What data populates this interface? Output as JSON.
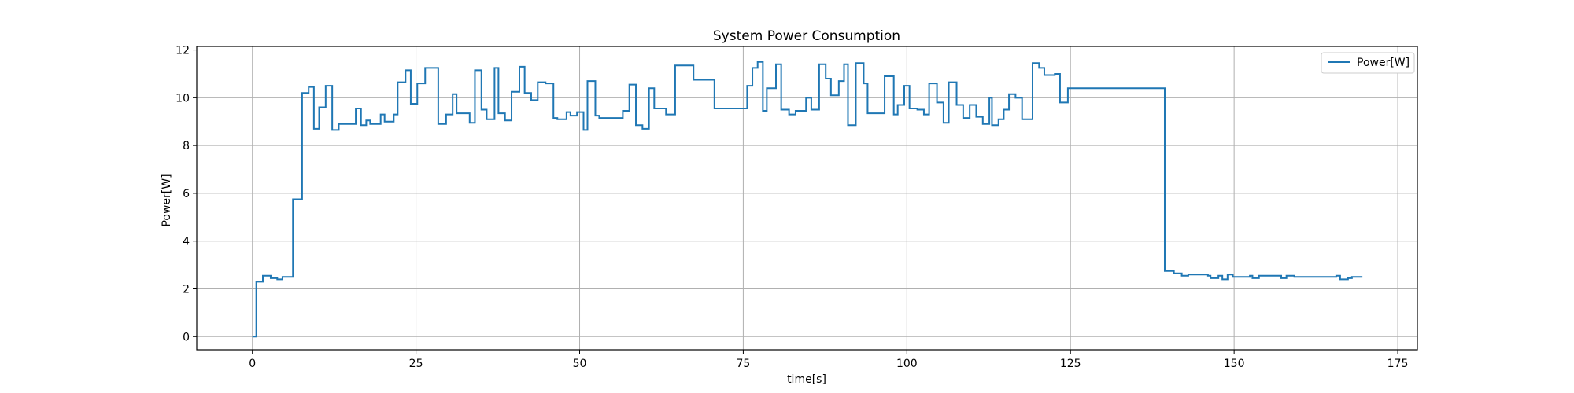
{
  "chart_data": {
    "type": "line",
    "title": "System Power Consumption",
    "xlabel": "time[s]",
    "ylabel": "Power[W]",
    "xlim": [
      -8.5,
      178.0
    ],
    "ylim": [
      -0.55,
      12.15
    ],
    "xticks": [
      0,
      25,
      50,
      75,
      100,
      125,
      150,
      175
    ],
    "yticks": [
      0,
      2,
      4,
      6,
      8,
      10,
      12
    ],
    "grid": true,
    "legend_position": "upper-right",
    "colors": {
      "line": "#1f77b4",
      "grid": "#b0b0b0"
    },
    "series": [
      {
        "name": "Power[W]",
        "step": "post",
        "points": [
          [
            0,
            0.0
          ],
          [
            0.6,
            2.3
          ],
          [
            1.6,
            2.55
          ],
          [
            2.8,
            2.45
          ],
          [
            3.8,
            2.4
          ],
          [
            4.6,
            2.5
          ],
          [
            6.2,
            5.75
          ],
          [
            7.6,
            10.2
          ],
          [
            8.6,
            10.45
          ],
          [
            9.4,
            8.7
          ],
          [
            10.2,
            9.6
          ],
          [
            11.2,
            10.5
          ],
          [
            12.2,
            8.65
          ],
          [
            13.2,
            8.9
          ],
          [
            15.8,
            9.55
          ],
          [
            16.6,
            8.85
          ],
          [
            17.4,
            9.05
          ],
          [
            18.0,
            8.9
          ],
          [
            19.6,
            9.3
          ],
          [
            20.2,
            9.0
          ],
          [
            21.6,
            9.3
          ],
          [
            22.2,
            10.65
          ],
          [
            23.4,
            11.15
          ],
          [
            24.2,
            9.75
          ],
          [
            25.2,
            10.6
          ],
          [
            26.4,
            11.25
          ],
          [
            28.4,
            8.9
          ],
          [
            29.6,
            9.3
          ],
          [
            30.6,
            10.15
          ],
          [
            31.2,
            9.35
          ],
          [
            33.2,
            8.95
          ],
          [
            34.0,
            11.15
          ],
          [
            35.0,
            9.5
          ],
          [
            35.8,
            9.1
          ],
          [
            37.0,
            11.25
          ],
          [
            37.6,
            9.35
          ],
          [
            38.6,
            9.05
          ],
          [
            39.6,
            10.25
          ],
          [
            40.8,
            11.3
          ],
          [
            41.6,
            10.2
          ],
          [
            42.6,
            9.9
          ],
          [
            43.6,
            10.65
          ],
          [
            44.8,
            10.6
          ],
          [
            46.0,
            9.15
          ],
          [
            46.6,
            9.1
          ],
          [
            48.0,
            9.4
          ],
          [
            48.6,
            9.25
          ],
          [
            49.6,
            9.4
          ],
          [
            50.6,
            8.65
          ],
          [
            51.2,
            10.7
          ],
          [
            52.4,
            9.25
          ],
          [
            53.0,
            9.15
          ],
          [
            56.6,
            9.45
          ],
          [
            57.6,
            10.55
          ],
          [
            58.6,
            8.85
          ],
          [
            59.6,
            8.7
          ],
          [
            60.6,
            10.4
          ],
          [
            61.4,
            9.55
          ],
          [
            63.2,
            9.3
          ],
          [
            64.6,
            11.35
          ],
          [
            66.2,
            11.35
          ],
          [
            67.4,
            10.75
          ],
          [
            70.2,
            10.75
          ],
          [
            70.6,
            9.55
          ],
          [
            75.0,
            9.55
          ],
          [
            75.6,
            10.5
          ],
          [
            76.4,
            11.25
          ],
          [
            77.2,
            11.5
          ],
          [
            78.0,
            9.45
          ],
          [
            78.6,
            10.4
          ],
          [
            80.0,
            11.4
          ],
          [
            80.8,
            9.5
          ],
          [
            82.0,
            9.3
          ],
          [
            83.0,
            9.45
          ],
          [
            84.6,
            10.0
          ],
          [
            85.4,
            9.5
          ],
          [
            86.6,
            11.4
          ],
          [
            87.6,
            10.8
          ],
          [
            88.4,
            10.1
          ],
          [
            89.6,
            10.7
          ],
          [
            90.4,
            11.4
          ],
          [
            91.0,
            8.85
          ],
          [
            92.2,
            11.45
          ],
          [
            93.4,
            10.6
          ],
          [
            94.0,
            9.35
          ],
          [
            96.6,
            10.9
          ],
          [
            98.0,
            9.3
          ],
          [
            98.6,
            9.7
          ],
          [
            99.6,
            10.5
          ],
          [
            100.4,
            9.55
          ],
          [
            101.6,
            9.5
          ],
          [
            102.6,
            9.3
          ],
          [
            103.4,
            10.6
          ],
          [
            104.6,
            9.8
          ],
          [
            105.6,
            8.95
          ],
          [
            106.4,
            10.65
          ],
          [
            107.6,
            9.7
          ],
          [
            108.6,
            9.15
          ],
          [
            109.6,
            9.7
          ],
          [
            110.6,
            9.2
          ],
          [
            111.6,
            8.9
          ],
          [
            112.6,
            10.0
          ],
          [
            113.0,
            8.85
          ],
          [
            114.0,
            9.1
          ],
          [
            114.8,
            9.5
          ],
          [
            115.6,
            10.15
          ],
          [
            116.6,
            10.0
          ],
          [
            117.6,
            9.1
          ],
          [
            119.2,
            11.45
          ],
          [
            120.2,
            11.25
          ],
          [
            121.0,
            10.95
          ],
          [
            122.6,
            11.0
          ],
          [
            123.4,
            9.8
          ],
          [
            124.6,
            10.4
          ],
          [
            138.8,
            10.4
          ],
          [
            139.4,
            2.75
          ],
          [
            140.8,
            2.65
          ],
          [
            142.0,
            2.55
          ],
          [
            143.0,
            2.6
          ],
          [
            146.0,
            2.55
          ],
          [
            146.4,
            2.45
          ],
          [
            147.6,
            2.55
          ],
          [
            148.2,
            2.4
          ],
          [
            149.0,
            2.6
          ],
          [
            149.8,
            2.5
          ],
          [
            152.4,
            2.55
          ],
          [
            152.8,
            2.45
          ],
          [
            153.8,
            2.55
          ],
          [
            157.2,
            2.45
          ],
          [
            158.0,
            2.55
          ],
          [
            159.2,
            2.5
          ],
          [
            162.4,
            2.5
          ],
          [
            165.6,
            2.55
          ],
          [
            166.2,
            2.4
          ],
          [
            167.4,
            2.45
          ],
          [
            168.0,
            2.5
          ],
          [
            169.6,
            2.5
          ]
        ]
      }
    ]
  }
}
